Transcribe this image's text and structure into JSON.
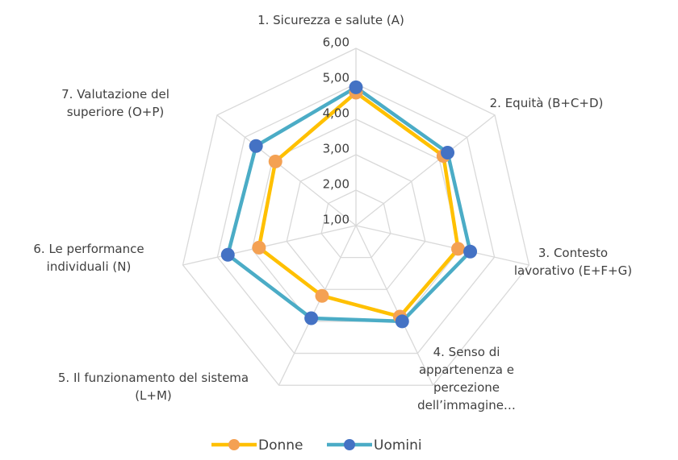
{
  "chart_data": {
    "type": "radar",
    "categories": [
      "1. Sicurezza e salute (A)",
      "2. Equità (B+C+D)",
      "3. Contesto lavorativo (E+F+G)",
      "4. Senso di appartenenza e percezione dell’immagine…",
      "5. Il funzionamento del sistema (L+M)",
      "6. Le performance individuali (N)",
      "7. Valutazione del superiore (O+P)"
    ],
    "series": [
      {
        "name": "Donne",
        "color": "#ffc000",
        "marker_color": "#f4a153",
        "values": [
          4.75,
          4.15,
          3.95,
          3.85,
          3.2,
          3.8,
          3.9
        ]
      },
      {
        "name": "Uomini",
        "color": "#4bacc6",
        "marker_color": "#4472c4",
        "values": [
          4.9,
          4.3,
          4.3,
          4.0,
          3.9,
          4.7,
          4.6
        ]
      }
    ],
    "ylim": [
      1,
      6
    ],
    "yticks": [
      {
        "value": 1,
        "label": "1,00"
      },
      {
        "value": 2,
        "label": "2,00"
      },
      {
        "value": 3,
        "label": "3,00"
      },
      {
        "value": 4,
        "label": "4,00"
      },
      {
        "value": 5,
        "label": "5,00"
      },
      {
        "value": 6,
        "label": "6,00"
      }
    ],
    "grid": true,
    "legend": "bottom"
  }
}
